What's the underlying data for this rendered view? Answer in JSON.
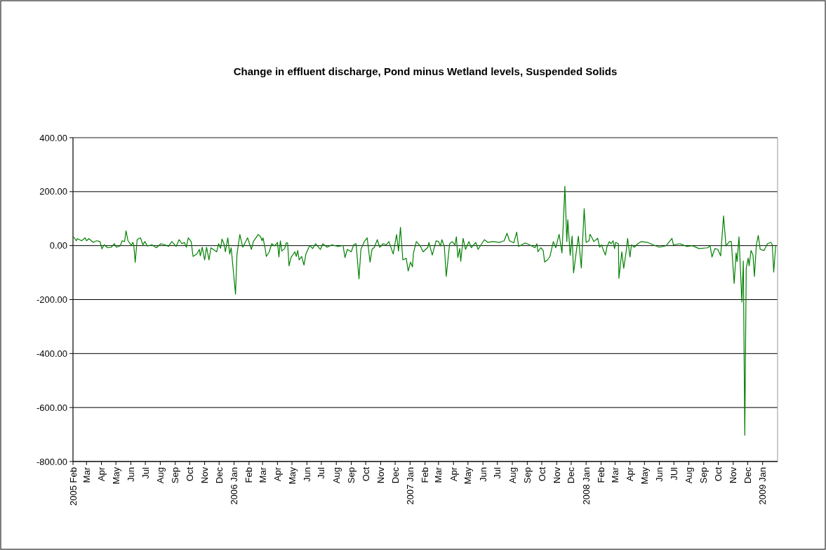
{
  "chart_data": {
    "type": "line",
    "title": "Change in effluent discharge, Pond minus Wetland levels, Suspended Solids",
    "x": [
      "2005-02-02",
      "2005-02-08",
      "2005-02-10",
      "2005-02-19",
      "2005-02-26",
      "2005-03-01",
      "2005-03-06",
      "2005-03-15",
      "2005-03-22",
      "2005-03-29",
      "2005-04-02",
      "2005-04-07",
      "2005-04-14",
      "2005-04-21",
      "2005-04-28",
      "2005-05-02",
      "2005-05-10",
      "2005-05-14",
      "2005-05-19",
      "2005-05-22",
      "2005-05-26",
      "2005-06-02",
      "2005-06-05",
      "2005-06-07",
      "2005-06-10",
      "2005-06-14",
      "2005-06-21",
      "2005-06-26",
      "2005-06-30",
      "2005-07-05",
      "2005-07-15",
      "2005-07-24",
      "2005-08-02",
      "2005-08-11",
      "2005-08-18",
      "2005-08-25",
      "2005-09-03",
      "2005-09-09",
      "2005-09-15",
      "2005-09-20",
      "2005-09-24",
      "2005-09-28",
      "2005-10-04",
      "2005-10-08",
      "2005-10-16",
      "2005-10-21",
      "2005-10-23",
      "2005-10-27",
      "2005-11-01",
      "2005-11-05",
      "2005-11-10",
      "2005-11-14",
      "2005-11-26",
      "2005-11-30",
      "2005-12-04",
      "2005-12-07",
      "2005-12-11",
      "2005-12-14",
      "2005-12-19",
      "2005-12-23",
      "2005-12-26",
      "2006-01-04",
      "2006-01-07",
      "2006-01-13",
      "2006-01-19",
      "2006-01-26",
      "2006-01-29",
      "2006-02-06",
      "2006-02-10",
      "2006-02-20",
      "2006-02-25",
      "2006-02-28",
      "2006-03-02",
      "2006-03-06",
      "2006-03-09",
      "2006-03-15",
      "2006-03-20",
      "2006-03-26",
      "2006-04-01",
      "2006-04-04",
      "2006-04-07",
      "2006-04-10",
      "2006-04-16",
      "2006-04-19",
      "2006-04-22",
      "2006-04-25",
      "2006-04-29",
      "2006-05-07",
      "2006-05-10",
      "2006-05-13",
      "2006-05-16",
      "2006-05-21",
      "2006-05-26",
      "2006-05-30",
      "2006-06-07",
      "2006-06-13",
      "2006-06-19",
      "2006-06-29",
      "2006-07-04",
      "2006-07-13",
      "2006-07-23",
      "2006-08-05",
      "2006-08-15",
      "2006-08-19",
      "2006-08-24",
      "2006-09-01",
      "2006-09-06",
      "2006-09-11",
      "2006-09-17",
      "2006-09-21",
      "2006-09-28",
      "2006-10-04",
      "2006-10-10",
      "2006-10-14",
      "2006-10-19",
      "2006-10-25",
      "2006-10-30",
      "2006-11-06",
      "2006-11-13",
      "2006-11-18",
      "2006-11-27",
      "2006-12-04",
      "2006-12-08",
      "2006-12-12",
      "2006-12-17",
      "2006-12-24",
      "2006-12-28",
      "2007-01-02",
      "2007-01-06",
      "2007-01-08",
      "2007-01-14",
      "2007-01-22",
      "2007-01-28",
      "2007-02-07",
      "2007-02-09",
      "2007-02-16",
      "2007-02-24",
      "2007-03-01",
      "2007-03-05",
      "2007-03-08",
      "2007-03-13",
      "2007-03-17",
      "2007-03-24",
      "2007-03-29",
      "2007-04-04",
      "2007-04-07",
      "2007-04-10",
      "2007-04-14",
      "2007-04-16",
      "2007-04-21",
      "2007-04-26",
      "2007-05-03",
      "2007-05-08",
      "2007-05-17",
      "2007-05-22",
      "2007-06-04",
      "2007-06-11",
      "2007-06-21",
      "2007-07-05",
      "2007-07-15",
      "2007-07-21",
      "2007-07-26",
      "2007-08-04",
      "2007-08-10",
      "2007-08-14",
      "2007-08-28",
      "2007-09-10",
      "2007-09-17",
      "2007-09-21",
      "2007-09-23",
      "2007-09-29",
      "2007-10-04",
      "2007-10-07",
      "2007-10-13",
      "2007-10-18",
      "2007-10-25",
      "2007-10-30",
      "2007-11-06",
      "2007-11-12",
      "2007-11-18",
      "2007-11-22",
      "2007-11-24",
      "2007-11-29",
      "2007-12-03",
      "2007-12-06",
      "2007-12-11",
      "2007-12-16",
      "2007-12-22",
      "2007-12-28",
      "2008-01-01",
      "2008-01-07",
      "2008-01-09",
      "2008-01-12",
      "2008-01-17",
      "2008-01-25",
      "2008-01-29",
      "2008-02-02",
      "2008-02-06",
      "2008-02-10",
      "2008-02-13",
      "2008-02-18",
      "2008-02-22",
      "2008-02-26",
      "2008-02-29",
      "2008-03-02",
      "2008-03-08",
      "2008-03-09",
      "2008-03-15",
      "2008-03-19",
      "2008-03-24",
      "2008-03-27",
      "2008-04-01",
      "2008-04-04",
      "2008-04-10",
      "2008-04-17",
      "2008-04-24",
      "2008-05-07",
      "2008-05-19",
      "2008-06-01",
      "2008-06-15",
      "2008-06-27",
      "2008-06-30",
      "2008-07-14",
      "2008-07-28",
      "2008-08-08",
      "2008-08-22",
      "2008-09-09",
      "2008-09-14",
      "2008-09-18",
      "2008-09-24",
      "2008-09-30",
      "2008-10-06",
      "2008-10-12",
      "2008-10-17",
      "2008-10-24",
      "2008-10-28",
      "2008-11-03",
      "2008-11-07",
      "2008-11-09",
      "2008-11-13",
      "2008-11-19",
      "2008-11-22",
      "2008-11-25",
      "2008-11-28",
      "2008-12-02",
      "2008-12-04",
      "2008-12-08",
      "2008-12-12",
      "2008-12-15",
      "2008-12-19",
      "2008-12-23",
      "2008-12-27",
      "2009-01-04",
      "2009-01-11",
      "2009-01-18",
      "2009-01-21",
      "2009-01-24",
      "2009-01-28"
    ],
    "series": [
      {
        "color": "#008000",
        "values": [
          33,
          18,
          26,
          18,
          29,
          18,
          26,
          12,
          18,
          15,
          -12,
          3,
          -8,
          -6,
          7,
          -6,
          -1,
          18,
          15,
          55,
          18,
          1,
          12,
          3,
          -62,
          22,
          29,
          3,
          15,
          -1,
          3,
          -8,
          7,
          3,
          -3,
          15,
          -3,
          22,
          7,
          12,
          -6,
          29,
          15,
          -40,
          -31,
          -14,
          -38,
          -6,
          -53,
          -6,
          -53,
          -8,
          -23,
          7,
          -10,
          24,
          7,
          -23,
          29,
          -31,
          -8,
          -180,
          -33,
          41,
          -6,
          18,
          29,
          -14,
          15,
          41,
          33,
          18,
          29,
          -6,
          -40,
          -23,
          7,
          -1,
          12,
          -42,
          18,
          -20,
          -11,
          10,
          10,
          -75,
          -44,
          -23,
          -40,
          -18,
          -53,
          -40,
          -72,
          -31,
          1,
          -11,
          7,
          -14,
          7,
          -6,
          3,
          -3,
          1,
          -44,
          -14,
          -23,
          3,
          7,
          -123,
          -14,
          15,
          29,
          -61,
          -14,
          -6,
          22,
          -6,
          7,
          3,
          15,
          -31,
          41,
          -20,
          68,
          -53,
          -47,
          -94,
          -61,
          -79,
          -27,
          15,
          -1,
          -23,
          -6,
          12,
          -35,
          18,
          15,
          -1,
          22,
          -3,
          -114,
          7,
          15,
          3,
          33,
          -44,
          -11,
          -58,
          27,
          -14,
          15,
          -8,
          12,
          -14,
          22,
          12,
          15,
          12,
          18,
          46,
          18,
          10,
          50,
          -3,
          10,
          -1,
          -8,
          7,
          -23,
          -8,
          -18,
          -61,
          -53,
          -40,
          15,
          -8,
          42,
          -27,
          220,
          15,
          96,
          -36,
          35,
          -101,
          -31,
          35,
          -83,
          137,
          12,
          18,
          42,
          33,
          15,
          27,
          -6,
          3,
          -18,
          -35,
          -6,
          15,
          7,
          18,
          -11,
          12,
          7,
          -121,
          -23,
          -84,
          -23,
          27,
          -42,
          3,
          -6,
          7,
          15,
          12,
          3,
          -6,
          0,
          27,
          3,
          7,
          -3,
          0,
          -11,
          -8,
          0,
          -42,
          -11,
          -14,
          -38,
          110,
          -1,
          15,
          15,
          -140,
          -27,
          -59,
          33,
          -209,
          -57,
          -703,
          -84,
          -46,
          -75,
          -18,
          -35,
          -114,
          3,
          38,
          -14,
          -18,
          7,
          12,
          3,
          -98,
          -1
        ]
      }
    ],
    "xlim": [
      "2005-02-01",
      "2009-02-01"
    ],
    "xticks": [
      {
        "value": "2005-02-01",
        "label": "2005 Feb"
      },
      {
        "value": "2005-03-01",
        "label": "Mar"
      },
      {
        "value": "2005-04-01",
        "label": "Apr"
      },
      {
        "value": "2005-05-01",
        "label": "May"
      },
      {
        "value": "2005-06-01",
        "label": "Jun"
      },
      {
        "value": "2005-07-01",
        "label": "Jul"
      },
      {
        "value": "2005-08-01",
        "label": "Aug"
      },
      {
        "value": "2005-09-01",
        "label": "Sep"
      },
      {
        "value": "2005-10-01",
        "label": "Oct"
      },
      {
        "value": "2005-11-01",
        "label": "Nov"
      },
      {
        "value": "2005-12-01",
        "label": "Dec"
      },
      {
        "value": "2006-01-01",
        "label": "2006 Jan"
      },
      {
        "value": "2006-02-01",
        "label": "Feb"
      },
      {
        "value": "2006-03-01",
        "label": "Mar"
      },
      {
        "value": "2006-04-01",
        "label": "Apr"
      },
      {
        "value": "2006-05-01",
        "label": "May"
      },
      {
        "value": "2006-06-01",
        "label": "Jun"
      },
      {
        "value": "2006-07-01",
        "label": "Jul"
      },
      {
        "value": "2006-08-01",
        "label": "Aug"
      },
      {
        "value": "2006-09-01",
        "label": "Sep"
      },
      {
        "value": "2006-10-01",
        "label": "Oct"
      },
      {
        "value": "2006-11-01",
        "label": "Nov"
      },
      {
        "value": "2006-12-01",
        "label": "Dec"
      },
      {
        "value": "2007-01-01",
        "label": "2007 Jan"
      },
      {
        "value": "2007-02-01",
        "label": "Feb"
      },
      {
        "value": "2007-03-01",
        "label": "Mar"
      },
      {
        "value": "2007-04-01",
        "label": "Apr"
      },
      {
        "value": "2007-05-01",
        "label": "May"
      },
      {
        "value": "2007-06-01",
        "label": "Jun"
      },
      {
        "value": "2007-07-01",
        "label": "Jul"
      },
      {
        "value": "2007-08-01",
        "label": "Aug"
      },
      {
        "value": "2007-09-01",
        "label": "Sep"
      },
      {
        "value": "2007-10-01",
        "label": "Oct"
      },
      {
        "value": "2007-11-01",
        "label": "Nov"
      },
      {
        "value": "2007-12-01",
        "label": "Dec"
      },
      {
        "value": "2008-01-01",
        "label": "2008 Jan"
      },
      {
        "value": "2008-02-01",
        "label": "Feb"
      },
      {
        "value": "2008-03-01",
        "label": "Mar"
      },
      {
        "value": "2008-04-01",
        "label": "Apr"
      },
      {
        "value": "2008-05-01",
        "label": "May"
      },
      {
        "value": "2008-06-01",
        "label": "Jun"
      },
      {
        "value": "2008-07-01",
        "label": "JUl"
      },
      {
        "value": "2008-08-01",
        "label": "Aug"
      },
      {
        "value": "2008-09-01",
        "label": "Sep"
      },
      {
        "value": "2008-10-01",
        "label": "Oct"
      },
      {
        "value": "2008-11-01",
        "label": "Nov"
      },
      {
        "value": "2008-12-01",
        "label": "Dec"
      },
      {
        "value": "2009-01-01",
        "label": "2009 Jan"
      }
    ],
    "ylim": [
      -800,
      400
    ],
    "yticks": [
      {
        "value": -800,
        "label": "-800.00"
      },
      {
        "value": -600,
        "label": "-600.00"
      },
      {
        "value": -400,
        "label": "-400.00"
      },
      {
        "value": -200,
        "label": "-200.00"
      },
      {
        "value": 0,
        "label": "0.00"
      },
      {
        "value": 200,
        "label": "200.00"
      },
      {
        "value": 400,
        "label": "400.00"
      }
    ],
    "grid": "y",
    "marker": "none",
    "line_style": "solid"
  }
}
